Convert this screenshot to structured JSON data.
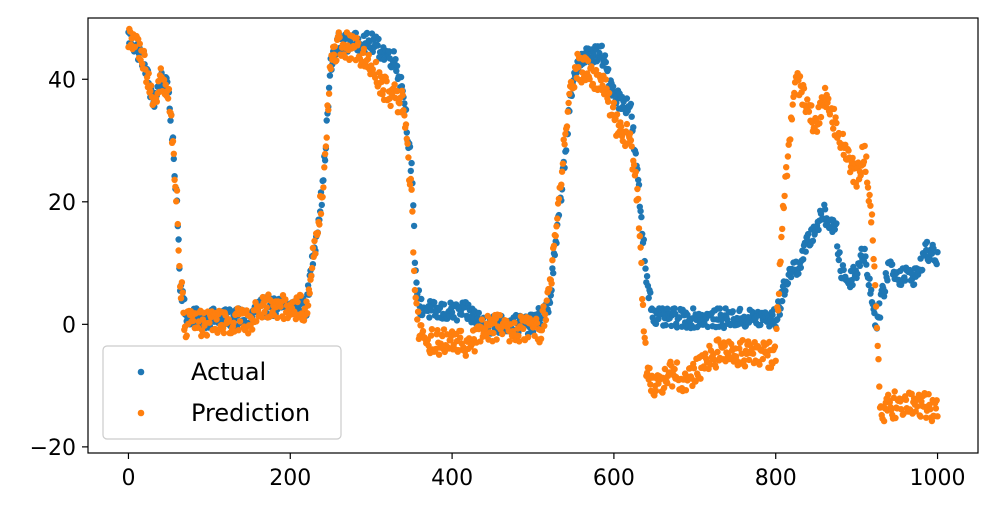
{
  "chart_data": {
    "type": "scatter",
    "title": "",
    "xlabel": "",
    "ylabel": "",
    "xlim": [
      -50,
      1050
    ],
    "ylim": [
      -21,
      50
    ],
    "xticks": [
      0,
      200,
      400,
      600,
      800,
      1000
    ],
    "yticks": [
      -20,
      0,
      20,
      40
    ],
    "grid": false,
    "legend_position": "lower-left",
    "series": [
      {
        "name": "Actual",
        "color": "#1f77b4",
        "keypoints": [
          [
            0,
            47
          ],
          [
            20,
            43
          ],
          [
            30,
            36
          ],
          [
            40,
            40
          ],
          [
            50,
            38
          ],
          [
            60,
            20
          ],
          [
            64,
            7
          ],
          [
            70,
            2
          ],
          [
            80,
            1
          ],
          [
            150,
            1
          ],
          [
            160,
            2.8
          ],
          [
            220,
            2.8
          ],
          [
            225,
            8
          ],
          [
            240,
            22
          ],
          [
            250,
            42
          ],
          [
            260,
            46
          ],
          [
            300,
            46
          ],
          [
            320,
            44
          ],
          [
            330,
            43
          ],
          [
            340,
            38
          ],
          [
            350,
            25
          ],
          [
            355,
            8
          ],
          [
            360,
            3
          ],
          [
            380,
            2
          ],
          [
            420,
            2
          ],
          [
            440,
            0
          ],
          [
            500,
            0
          ],
          [
            520,
            3
          ],
          [
            530,
            15
          ],
          [
            545,
            35
          ],
          [
            555,
            43
          ],
          [
            570,
            44
          ],
          [
            585,
            44
          ],
          [
            600,
            38
          ],
          [
            610,
            36
          ],
          [
            620,
            36
          ],
          [
            630,
            23
          ],
          [
            640,
            8
          ],
          [
            650,
            1
          ],
          [
            700,
            1
          ],
          [
            750,
            1
          ],
          [
            800,
            1
          ],
          [
            805,
            3
          ],
          [
            815,
            8
          ],
          [
            830,
            10
          ],
          [
            845,
            15
          ],
          [
            860,
            18
          ],
          [
            875,
            15
          ],
          [
            880,
            9
          ],
          [
            890,
            7
          ],
          [
            900,
            9
          ],
          [
            910,
            12
          ],
          [
            920,
            3
          ],
          [
            925,
            0
          ],
          [
            940,
            10
          ],
          [
            950,
            8
          ],
          [
            960,
            8
          ],
          [
            975,
            8
          ],
          [
            985,
            12
          ],
          [
            1000,
            11
          ]
        ],
        "jitter": 1.6
      },
      {
        "name": "Prediction",
        "color": "#ff7f0e",
        "keypoints": [
          [
            0,
            47
          ],
          [
            20,
            43
          ],
          [
            30,
            36
          ],
          [
            40,
            40
          ],
          [
            50,
            38
          ],
          [
            60,
            20
          ],
          [
            64,
            7
          ],
          [
            70,
            0
          ],
          [
            150,
            0.5
          ],
          [
            160,
            2.8
          ],
          [
            220,
            2.8
          ],
          [
            225,
            8
          ],
          [
            240,
            22
          ],
          [
            250,
            42
          ],
          [
            260,
            46
          ],
          [
            280,
            45
          ],
          [
            300,
            42
          ],
          [
            320,
            38
          ],
          [
            340,
            36
          ],
          [
            350,
            20
          ],
          [
            355,
            4
          ],
          [
            360,
            -2
          ],
          [
            380,
            -2.8
          ],
          [
            420,
            -3
          ],
          [
            430,
            -2
          ],
          [
            440,
            -0.5
          ],
          [
            510,
            -1
          ],
          [
            520,
            5
          ],
          [
            530,
            17
          ],
          [
            545,
            38
          ],
          [
            555,
            42
          ],
          [
            570,
            41
          ],
          [
            590,
            38
          ],
          [
            605,
            32
          ],
          [
            620,
            30
          ],
          [
            630,
            20
          ],
          [
            635,
            5
          ],
          [
            640,
            -7
          ],
          [
            650,
            -10
          ],
          [
            670,
            -8
          ],
          [
            690,
            -9
          ],
          [
            700,
            -8
          ],
          [
            715,
            -6
          ],
          [
            730,
            -4.5
          ],
          [
            800,
            -5
          ],
          [
            805,
            10
          ],
          [
            815,
            28
          ],
          [
            825,
            40
          ],
          [
            840,
            36
          ],
          [
            850,
            32
          ],
          [
            860,
            37
          ],
          [
            870,
            34
          ],
          [
            880,
            30
          ],
          [
            890,
            27
          ],
          [
            900,
            24
          ],
          [
            910,
            28
          ],
          [
            920,
            15
          ],
          [
            925,
            -2
          ],
          [
            930,
            -14
          ],
          [
            950,
            -13
          ],
          [
            975,
            -13
          ],
          [
            1000,
            -14
          ]
        ],
        "jitter": 2.2
      }
    ]
  },
  "legend": {
    "actual_label": "Actual",
    "prediction_label": "Prediction"
  }
}
